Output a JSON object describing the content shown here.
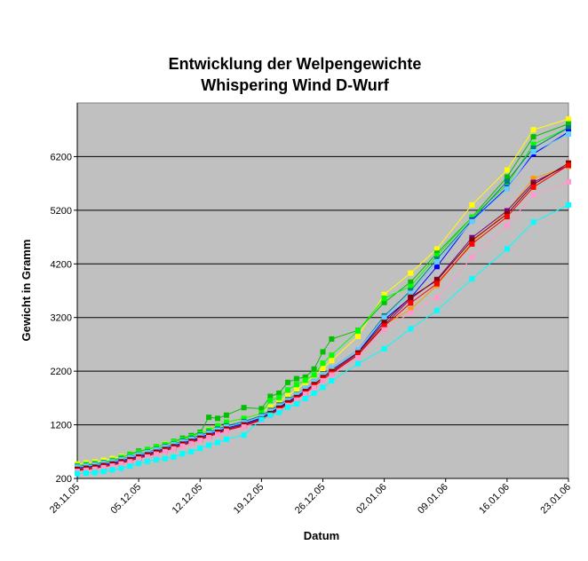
{
  "chart_data": {
    "type": "line",
    "title": "Entwicklung der Welpengewichte",
    "subtitle": "Whispering Wind D-Wurf",
    "xlabel": "Datum",
    "ylabel": "Gewicht in Gramm",
    "ylim": [
      200,
      7200
    ],
    "xlim": [
      "2005-11-28",
      "2006-01-23"
    ],
    "y_ticks": [
      200,
      1200,
      2200,
      3200,
      4200,
      5200,
      6200
    ],
    "x_ticks": [
      {
        "label": "28.11.05",
        "date": "2005-11-28"
      },
      {
        "label": "05.12.05",
        "date": "2005-12-05"
      },
      {
        "label": "12.12.05",
        "date": "2005-12-12"
      },
      {
        "label": "19.12.05",
        "date": "2005-12-19"
      },
      {
        "label": "26.12.05",
        "date": "2005-12-26"
      },
      {
        "label": "02.01.06",
        "date": "2006-01-02"
      },
      {
        "label": "09.01.06",
        "date": "2006-01-09"
      },
      {
        "label": "16.01.06",
        "date": "2006-01-16"
      },
      {
        "label": "23.01.06",
        "date": "2006-01-23"
      }
    ],
    "grid": "horizontal",
    "legend": "none",
    "plot_background": "#c0c0c0",
    "x": [
      "2005-11-28",
      "2005-11-29",
      "2005-11-30",
      "2005-12-01",
      "2005-12-02",
      "2005-12-03",
      "2005-12-04",
      "2005-12-05",
      "2005-12-06",
      "2005-12-07",
      "2005-12-08",
      "2005-12-09",
      "2005-12-10",
      "2005-12-11",
      "2005-12-12",
      "2005-12-13",
      "2005-12-14",
      "2005-12-15",
      "2005-12-17",
      "2005-12-19",
      "2005-12-20",
      "2005-12-21",
      "2005-12-22",
      "2005-12-23",
      "2005-12-24",
      "2005-12-25",
      "2005-12-26",
      "2005-12-27",
      "2005-12-30",
      "2006-01-02",
      "2006-01-05",
      "2006-01-08",
      "2006-01-12",
      "2006-01-16",
      "2006-01-19",
      "2006-01-23"
    ],
    "series": [
      {
        "color": "#ffff00",
        "values": [
          470,
          490,
          510,
          540,
          570,
          610,
          650,
          700,
          740,
          790,
          840,
          890,
          940,
          990,
          1050,
          1110,
          1180,
          1250,
          1320,
          1430,
          1530,
          1640,
          1740,
          1860,
          1990,
          2120,
          2250,
          2400,
          2850,
          3630,
          4030,
          4480,
          5300,
          5950,
          6700,
          6900
        ]
      },
      {
        "color": "#00c000",
        "values": [
          410,
          430,
          450,
          490,
          540,
          590,
          650,
          710,
          740,
          790,
          830,
          890,
          950,
          1000,
          1060,
          1340,
          1320,
          1380,
          1520,
          1500,
          1730,
          1790,
          1990,
          2060,
          2090,
          2240,
          2560,
          2800,
          2960,
          3480,
          3860,
          4400,
          5070,
          5820,
          6570,
          6810
        ]
      },
      {
        "color": "#00ff00",
        "values": [
          440,
          460,
          480,
          500,
          540,
          590,
          640,
          690,
          740,
          790,
          830,
          880,
          930,
          980,
          1040,
          1100,
          1180,
          1250,
          1320,
          1420,
          1650,
          1710,
          1850,
          1950,
          2030,
          2130,
          2350,
          2500,
          2950,
          3560,
          3780,
          4350,
          5070,
          5680,
          6430,
          6740
        ]
      },
      {
        "color": "#008080",
        "values": [
          420,
          440,
          460,
          490,
          520,
          560,
          600,
          650,
          690,
          740,
          790,
          840,
          900,
          950,
          1010,
          1060,
          1120,
          1180,
          1260,
          1370,
          1470,
          1570,
          1670,
          1770,
          1880,
          2000,
          2130,
          2260,
          2600,
          3230,
          3700,
          4290,
          5020,
          5740,
          6360,
          6740
        ]
      },
      {
        "color": "#0000ff",
        "values": [
          390,
          410,
          430,
          460,
          490,
          530,
          570,
          620,
          660,
          710,
          760,
          810,
          860,
          910,
          970,
          1020,
          1080,
          1140,
          1220,
          1330,
          1430,
          1520,
          1630,
          1730,
          1840,
          1960,
          2080,
          2220,
          2550,
          3160,
          3570,
          4150,
          5010,
          5620,
          6250,
          6660
        ]
      },
      {
        "color": "#66ccff",
        "values": [
          410,
          430,
          450,
          480,
          510,
          550,
          590,
          640,
          680,
          730,
          780,
          830,
          880,
          930,
          990,
          1040,
          1100,
          1160,
          1240,
          1350,
          1450,
          1550,
          1650,
          1760,
          1880,
          2000,
          2130,
          2260,
          2600,
          3200,
          3650,
          4240,
          4990,
          5600,
          6290,
          6620
        ]
      },
      {
        "color": "#ff9900",
        "values": [
          360,
          380,
          400,
          430,
          460,
          500,
          540,
          590,
          630,
          680,
          730,
          780,
          830,
          880,
          940,
          990,
          1050,
          1110,
          1190,
          1300,
          1400,
          1500,
          1600,
          1700,
          1820,
          1950,
          2080,
          2200,
          2540,
          3060,
          3350,
          3800,
          4600,
          5180,
          5790,
          6020
        ]
      },
      {
        "color": "#800080",
        "values": [
          350,
          370,
          390,
          420,
          450,
          490,
          530,
          580,
          620,
          670,
          720,
          770,
          820,
          870,
          930,
          980,
          1040,
          1100,
          1180,
          1290,
          1390,
          1490,
          1590,
          1690,
          1800,
          1920,
          2040,
          2170,
          2510,
          3060,
          3550,
          3910,
          4690,
          5190,
          5720,
          6040
        ]
      },
      {
        "color": "#800000",
        "values": [
          370,
          390,
          410,
          440,
          470,
          510,
          550,
          600,
          640,
          690,
          740,
          790,
          840,
          890,
          950,
          1000,
          1060,
          1120,
          1200,
          1310,
          1410,
          1510,
          1610,
          1710,
          1820,
          1950,
          2080,
          2190,
          2540,
          3110,
          3580,
          3890,
          4640,
          5130,
          5680,
          6080
        ]
      },
      {
        "color": "#ff0000",
        "values": [
          340,
          360,
          380,
          410,
          440,
          480,
          520,
          570,
          610,
          660,
          710,
          760,
          810,
          860,
          920,
          970,
          1030,
          1090,
          1170,
          1280,
          1380,
          1480,
          1580,
          1680,
          1790,
          1920,
          2050,
          2160,
          2500,
          3040,
          3470,
          3830,
          4570,
          5080,
          5630,
          6040
        ]
      },
      {
        "color": "#ff99cc",
        "values": [
          330,
          350,
          370,
          400,
          430,
          470,
          510,
          560,
          600,
          650,
          700,
          750,
          800,
          850,
          910,
          960,
          1020,
          1080,
          1160,
          1270,
          1370,
          1460,
          1560,
          1660,
          1770,
          1890,
          2020,
          2130,
          2450,
          2970,
          3290,
          3570,
          4320,
          4920,
          5480,
          5730
        ]
      },
      {
        "color": "#00ffff",
        "values": [
          290,
          300,
          310,
          330,
          360,
          390,
          430,
          480,
          520,
          550,
          570,
          600,
          660,
          700,
          760,
          820,
          870,
          930,
          1010,
          1300,
          1380,
          1430,
          1530,
          1590,
          1690,
          1790,
          1900,
          2020,
          2340,
          2620,
          2990,
          3330,
          3920,
          4480,
          4980,
          5300
        ]
      }
    ]
  }
}
